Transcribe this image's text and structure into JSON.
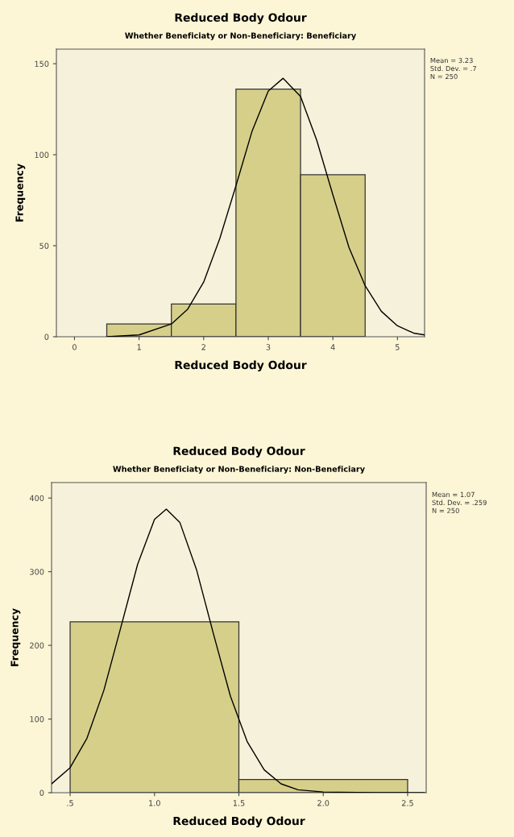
{
  "chart_data": [
    {
      "type": "histogram",
      "title": "Reduced Body Odour",
      "subtitle": "Whether Beneficiaty or Non-Beneficiary: Beneficiary",
      "xlabel": "Reduced Body Odour",
      "ylabel": "Frequency",
      "bins": [
        0.5,
        1.5,
        2.5,
        3.5,
        4.5
      ],
      "values": [
        7,
        18,
        136,
        89
      ],
      "color": "#d6cf8a",
      "series": [
        {
          "type": "line",
          "color": "#000000",
          "x": [
            0.5,
            1.0,
            1.5,
            1.75,
            2.0,
            2.25,
            2.5,
            2.75,
            3.0,
            3.23,
            3.5,
            3.75,
            4.0,
            4.25,
            4.5,
            4.75,
            5.0,
            5.25,
            5.42
          ],
          "values": [
            0,
            1,
            7,
            15,
            30,
            54,
            83,
            113,
            135,
            142,
            132,
            108,
            78,
            49,
            28,
            14,
            6,
            2,
            1
          ]
        }
      ],
      "xlim": [
        -0.28,
        5.42
      ],
      "xticks": [
        0,
        1,
        2,
        3,
        4,
        5
      ],
      "ylim": [
        0,
        158
      ],
      "yticks": [
        0,
        50,
        100,
        150
      ],
      "annotations": [
        "Mean = 3.23",
        "Std. Dev. = .7",
        "N = 250"
      ],
      "grid": false,
      "legend": false
    },
    {
      "type": "histogram",
      "title": "Reduced Body Odour",
      "subtitle": "Whether Beneficiaty or Non-Beneficiary: Non-Beneficiary",
      "xlabel": "Reduced Body Odour",
      "ylabel": "Frequency",
      "bins": [
        0.5,
        1.5,
        2.5
      ],
      "values": [
        232,
        18
      ],
      "color": "#d6cf8a",
      "series": [
        {
          "type": "line",
          "color": "#000000",
          "x": [
            0.39,
            0.5,
            0.6,
            0.7,
            0.8,
            0.9,
            1.0,
            1.07,
            1.15,
            1.25,
            1.35,
            1.45,
            1.55,
            1.65,
            1.75,
            1.85,
            2.0,
            2.3,
            2.6
          ],
          "values": [
            12,
            34,
            74,
            139,
            224,
            310,
            371,
            385,
            367,
            302,
            215,
            131,
            69,
            31,
            12,
            4,
            1,
            0,
            0
          ]
        }
      ],
      "xlim": [
        0.39,
        2.61
      ],
      "xticks": [
        {
          "value": 0.5,
          "label": ".5"
        },
        {
          "value": 1.0,
          "label": "1.0"
        },
        {
          "value": 1.5,
          "label": "1.5"
        },
        {
          "value": 2.0,
          "label": "2.0"
        },
        {
          "value": 2.5,
          "label": "2.5"
        }
      ],
      "ylim": [
        0,
        421
      ],
      "yticks": [
        0,
        100,
        200,
        300,
        400
      ],
      "annotations": [
        "Mean = 1.07",
        "Std. Dev. = .259",
        "N = 250"
      ],
      "grid": false,
      "legend": false
    }
  ]
}
